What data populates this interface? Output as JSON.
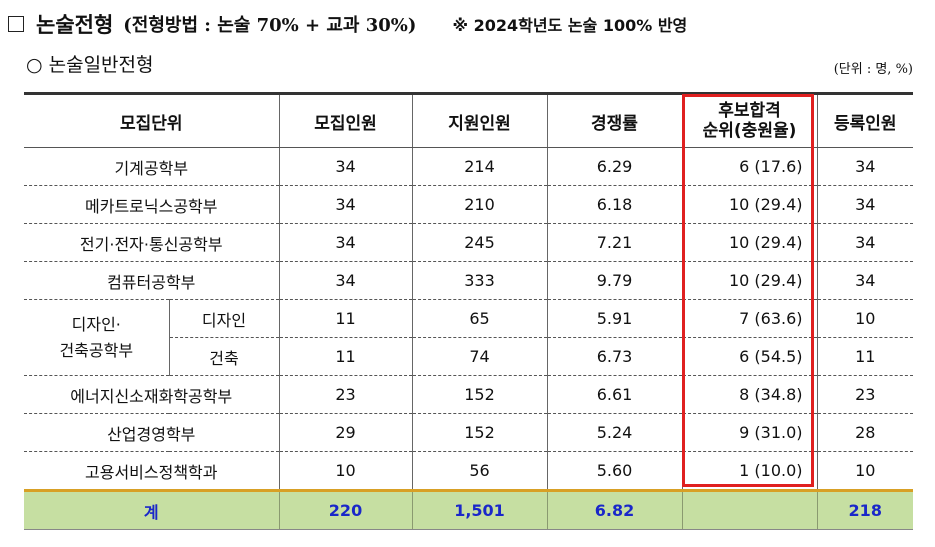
{
  "header": {
    "title": "논술전형",
    "method": "(전형방법 : 논술 70% + 교과 30%)",
    "note": "※ 2024학년도 논술 100% 반영"
  },
  "subheading": "○ 논술일반전형",
  "unit": "(단위 : 명, %)",
  "table": {
    "headers": {
      "unit": "모집단위",
      "quota": "모집인원",
      "applicants": "지원인원",
      "ratio": "경쟁률",
      "waitlist_line1": "후보합격",
      "waitlist_line2": "순위(충원율)",
      "enrolled": "등록인원"
    },
    "rows": [
      {
        "name": "기계공학부",
        "quota": "34",
        "applicants": "214",
        "ratio": "6.29",
        "waitlist": "6 (17.6)",
        "enrolled": "34"
      },
      {
        "name": "메카트로닉스공학부",
        "quota": "34",
        "applicants": "210",
        "ratio": "6.18",
        "waitlist": "10 (29.4)",
        "enrolled": "34"
      },
      {
        "name": "전기·전자·통신공학부",
        "quota": "34",
        "applicants": "245",
        "ratio": "7.21",
        "waitlist": "10 (29.4)",
        "enrolled": "34"
      },
      {
        "name": "컴퓨터공학부",
        "quota": "34",
        "applicants": "333",
        "ratio": "9.79",
        "waitlist": "10 (29.4)",
        "enrolled": "34"
      },
      {
        "group_line1": "디자인·",
        "group_line2": "건축공학부",
        "name": "디자인",
        "quota": "11",
        "applicants": "65",
        "ratio": "5.91",
        "waitlist": "7 (63.6)",
        "enrolled": "10"
      },
      {
        "name": "건축",
        "quota": "11",
        "applicants": "74",
        "ratio": "6.73",
        "waitlist": "6 (54.5)",
        "enrolled": "11"
      },
      {
        "name": "에너지신소재화학공학부",
        "quota": "23",
        "applicants": "152",
        "ratio": "6.61",
        "waitlist": "8 (34.8)",
        "enrolled": "23"
      },
      {
        "name": "산업경영학부",
        "quota": "29",
        "applicants": "152",
        "ratio": "5.24",
        "waitlist": "9 (31.0)",
        "enrolled": "28"
      },
      {
        "name": "고용서비스정책학과",
        "quota": "10",
        "applicants": "56",
        "ratio": "5.60",
        "waitlist": "1 (10.0)",
        "enrolled": "10"
      }
    ],
    "total": {
      "label": "계",
      "quota": "220",
      "applicants": "1,501",
      "ratio": "6.82",
      "waitlist": "",
      "enrolled": "218"
    }
  }
}
